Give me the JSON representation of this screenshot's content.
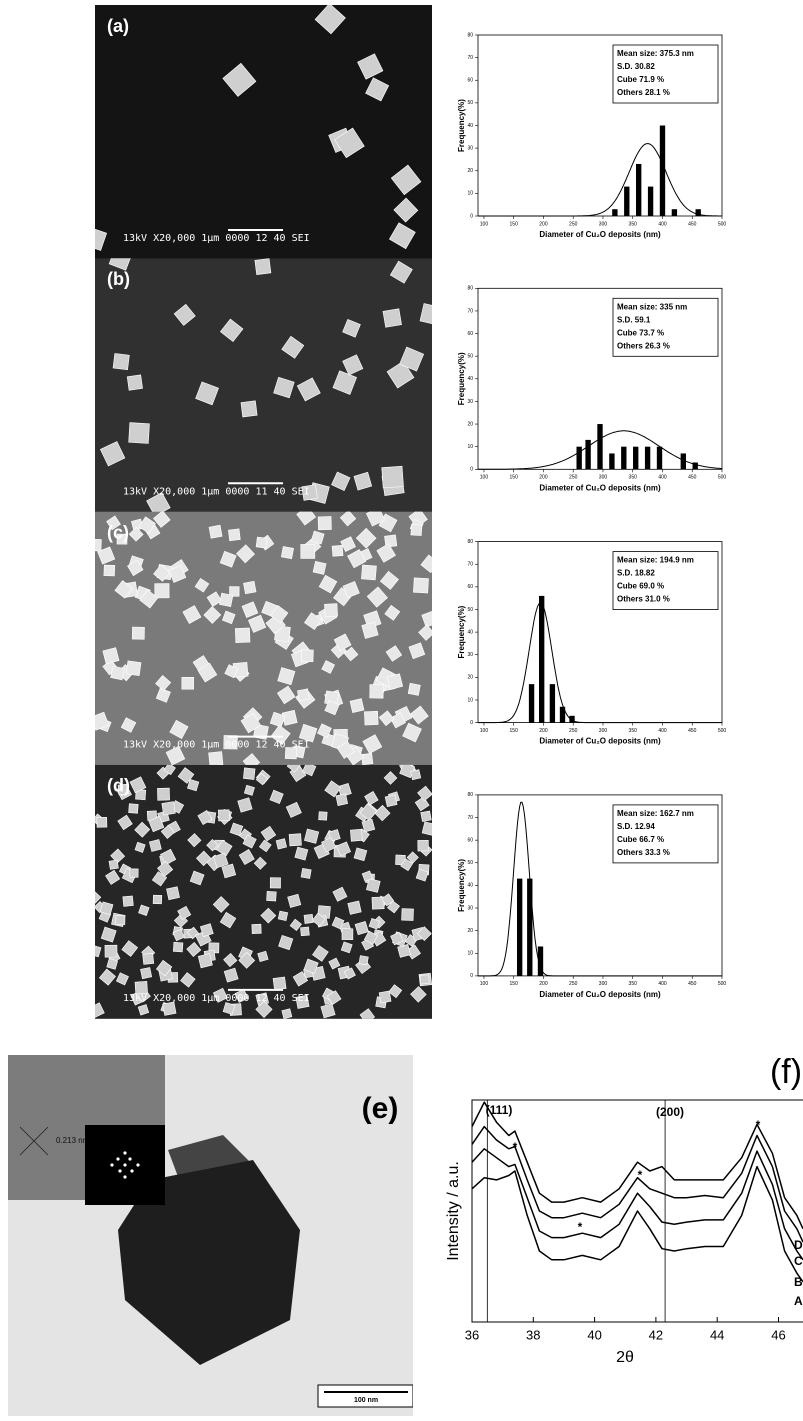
{
  "chart_data": [
    {
      "type": "bar",
      "x": [
        320,
        340,
        360,
        380,
        400,
        420,
        460
      ],
      "values": [
        3,
        13,
        23,
        13,
        40,
        3,
        3
      ],
      "color": "#000000",
      "xlim": [
        90,
        500
      ],
      "ylim": [
        0,
        80
      ],
      "xticks": [
        100,
        150,
        200,
        250,
        300,
        350,
        400,
        450,
        500
      ],
      "yticks": [
        0,
        10,
        20,
        30,
        40,
        50,
        60,
        70,
        80
      ],
      "x_label": "Diameter of Cu₂O deposits (nm)",
      "y_label": "Frequency(%)",
      "info": [
        "Mean size: 375.3 nm",
        "S.D. 30.82",
        "Cube 71.9 %",
        "Others 28.1 %"
      ],
      "fit": {
        "center": 375,
        "sd": 31,
        "peak": 32
      }
    },
    {
      "type": "bar",
      "x": [
        260,
        275,
        295,
        315,
        335,
        355,
        375,
        395,
        435,
        455
      ],
      "values": [
        10,
        13,
        20,
        7,
        10,
        10,
        10,
        10,
        7,
        3
      ],
      "color": "#000000",
      "xlim": [
        90,
        500
      ],
      "ylim": [
        0,
        80
      ],
      "xticks": [
        100,
        150,
        200,
        250,
        300,
        350,
        400,
        450,
        500
      ],
      "yticks": [
        0,
        10,
        20,
        30,
        40,
        50,
        60,
        70,
        80
      ],
      "x_label": "Diameter of Cu₂O deposits (nm)",
      "y_label": "Frequency(%)",
      "info": [
        "Mean size: 335 nm",
        "S.D. 59.1",
        "Cube 73.7 %",
        "Others 26.3 %"
      ],
      "fit": {
        "center": 335,
        "sd": 59,
        "peak": 17
      }
    },
    {
      "type": "bar",
      "x": [
        180,
        197,
        215,
        232,
        248
      ],
      "values": [
        17,
        56,
        17,
        7,
        3
      ],
      "color": "#000000",
      "xlim": [
        90,
        500
      ],
      "ylim": [
        0,
        80
      ],
      "xticks": [
        100,
        150,
        200,
        250,
        300,
        350,
        400,
        450,
        500
      ],
      "yticks": [
        0,
        10,
        20,
        30,
        40,
        50,
        60,
        70,
        80
      ],
      "x_label": "Diameter of Cu₂O deposits (nm)",
      "y_label": "Frequency(%)",
      "info": [
        "Mean size: 194.9 nm",
        "S.D. 18.82",
        "Cube 69.0 %",
        "Others 31.0 %"
      ],
      "fit": {
        "center": 195,
        "sd": 19,
        "peak": 53
      }
    },
    {
      "type": "bar",
      "x": [
        160,
        177,
        195
      ],
      "values": [
        43,
        43,
        13
      ],
      "color": "#000000",
      "xlim": [
        90,
        500
      ],
      "ylim": [
        0,
        80
      ],
      "xticks": [
        100,
        150,
        200,
        250,
        300,
        350,
        400,
        450,
        500
      ],
      "yticks": [
        0,
        10,
        20,
        30,
        40,
        50,
        60,
        70,
        80
      ],
      "x_label": "Diameter of Cu₂O deposits (nm)",
      "y_label": "Frequency(%)",
      "info": [
        "Mean size: 162.7 nm",
        "S.D. 12.94",
        "Cube 66.7 %",
        "Others 33.3 %"
      ],
      "fit": {
        "center": 163,
        "sd": 13,
        "peak": 77
      }
    },
    {
      "type": "line",
      "x": [
        36,
        36.4,
        36.8,
        37.2,
        37.4,
        37.8,
        38.2,
        38.6,
        39,
        39.6,
        40.2,
        40.8,
        41.4,
        41.8,
        42.2,
        42.6,
        43,
        43.6,
        44.2,
        44.8,
        45.3,
        45.8,
        46.2,
        46.6,
        46.8
      ],
      "series": [
        {
          "name": "A",
          "color": "#000000",
          "values": [
            60,
            65,
            64,
            66,
            68,
            48,
            32,
            28,
            28,
            30,
            28,
            34,
            50,
            42,
            33,
            32,
            33,
            34,
            34,
            48,
            70,
            55,
            32,
            22,
            18
          ]
        },
        {
          "name": "B",
          "color": "#000000",
          "values": [
            72,
            78,
            74,
            70,
            71,
            56,
            41,
            38,
            38,
            40,
            38,
            44,
            58,
            52,
            45,
            44,
            45,
            46,
            46,
            58,
            77,
            62,
            42,
            32,
            28
          ]
        },
        {
          "name": "C",
          "color": "#000000",
          "values": [
            80,
            88,
            82,
            78,
            79,
            64,
            50,
            47,
            47,
            49,
            47,
            53,
            65,
            60,
            58,
            56,
            56,
            57,
            56,
            67,
            84,
            70,
            50,
            42,
            36
          ]
        },
        {
          "name": "D",
          "color": "#000000",
          "values": [
            88,
            99,
            90,
            84,
            86,
            72,
            58,
            54,
            54,
            56,
            54,
            60,
            72,
            68,
            70,
            64,
            64,
            64,
            64,
            74,
            89,
            76,
            56,
            48,
            42
          ]
        }
      ],
      "xlim": [
        36,
        46.8
      ],
      "ylim": [
        0,
        100
      ],
      "xticks": [
        36,
        38,
        40,
        42,
        44,
        46
      ],
      "reference_lines": [
        36.5,
        42.3
      ],
      "x_label": "2θ",
      "y_label": "Intensity / a.u.",
      "panel_label": "(f)",
      "annotations": [
        "(111)",
        "*",
        "*",
        "*",
        "(200)",
        "*"
      ]
    }
  ],
  "images": [
    {
      "label": "(a)",
      "caption": "13kV  X20,000   1μm  0000 12 40 SEI"
    },
    {
      "label": "(b)",
      "caption": "13kV  X20,000   1μm  0000 11 40 SEI"
    },
    {
      "label": "(c)",
      "caption": "13kV  X20,000   1μm  0000 12 40 SEI"
    },
    {
      "label": "(d)",
      "caption": "13kV  X20,000   1μm  0000 12 40 SEI"
    },
    {
      "label": "(e)",
      "inset_text": "0.213 nm",
      "scale_bar": "100 nm"
    }
  ]
}
